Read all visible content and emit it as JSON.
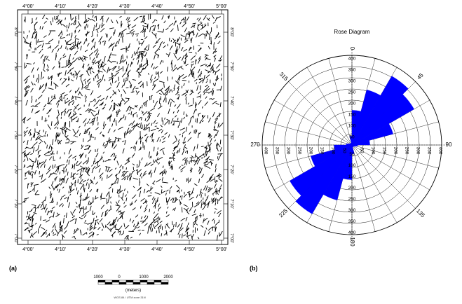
{
  "map": {
    "panel_label": "(a)",
    "top_ticks": [
      "4°00'",
      "4°10'",
      "4°20'",
      "4°30'",
      "4°40'",
      "4°50'",
      "5°00'"
    ],
    "bottom_ticks": [
      "4°00'",
      "4°10'",
      "4°20'",
      "4°30'",
      "4°40'",
      "4°50'",
      "5°00'"
    ],
    "left_ticks": [
      "8°00'",
      "7°50'",
      "7°40'",
      "7°30'",
      "7°20'",
      "7°10'",
      "7°00'"
    ],
    "right_ticks": [
      "8°00'",
      "7°50'",
      "7°40'",
      "7°30'",
      "7°20'",
      "7°10'",
      "7°00'"
    ],
    "scale_bar": {
      "labels": [
        "1000",
        "0",
        "1000",
        "2000"
      ],
      "unit": "(meters)",
      "projection": "WGS 84 / UTM zone 31N"
    }
  },
  "chart_data": {
    "type": "rose",
    "title": "Rose Diagram",
    "panel_label": "(b)",
    "bin_width_deg": 15,
    "rmax": 400,
    "ring_step": 50,
    "radial_tick_labels": [
      "50",
      "100",
      "150",
      "200",
      "250",
      "300",
      "350",
      "400"
    ],
    "direction_labels": [
      {
        "angle": 0,
        "text": "0"
      },
      {
        "angle": 45,
        "text": "45"
      },
      {
        "angle": 90,
        "text": "90"
      },
      {
        "angle": 135,
        "text": "135"
      },
      {
        "angle": 180,
        "text": "180"
      },
      {
        "angle": 225,
        "text": "225"
      },
      {
        "angle": 270,
        "text": "270"
      },
      {
        "angle": 315,
        "text": "315"
      }
    ],
    "bins": [
      {
        "start": 0,
        "end": 15,
        "value": 155
      },
      {
        "start": 15,
        "end": 30,
        "value": 255
      },
      {
        "start": 30,
        "end": 45,
        "value": 355
      },
      {
        "start": 45,
        "end": 60,
        "value": 320
      },
      {
        "start": 60,
        "end": 75,
        "value": 190
      },
      {
        "start": 75,
        "end": 90,
        "value": 80
      },
      {
        "start": 90,
        "end": 105,
        "value": 25
      },
      {
        "start": 105,
        "end": 120,
        "value": 15
      },
      {
        "start": 120,
        "end": 135,
        "value": 10
      },
      {
        "start": 135,
        "end": 150,
        "value": 10
      },
      {
        "start": 150,
        "end": 165,
        "value": 10
      },
      {
        "start": 165,
        "end": 180,
        "value": 40
      },
      {
        "start": 180,
        "end": 195,
        "value": 155
      },
      {
        "start": 195,
        "end": 210,
        "value": 255
      },
      {
        "start": 210,
        "end": 225,
        "value": 355
      },
      {
        "start": 225,
        "end": 240,
        "value": 320
      },
      {
        "start": 240,
        "end": 255,
        "value": 190
      },
      {
        "start": 255,
        "end": 270,
        "value": 80
      },
      {
        "start": 270,
        "end": 285,
        "value": 25
      },
      {
        "start": 285,
        "end": 300,
        "value": 15
      },
      {
        "start": 300,
        "end": 315,
        "value": 10
      },
      {
        "start": 315,
        "end": 330,
        "value": 10
      },
      {
        "start": 330,
        "end": 345,
        "value": 10
      },
      {
        "start": 345,
        "end": 360,
        "value": 40
      }
    ],
    "fill_color": "#0000ff",
    "grid": true
  }
}
